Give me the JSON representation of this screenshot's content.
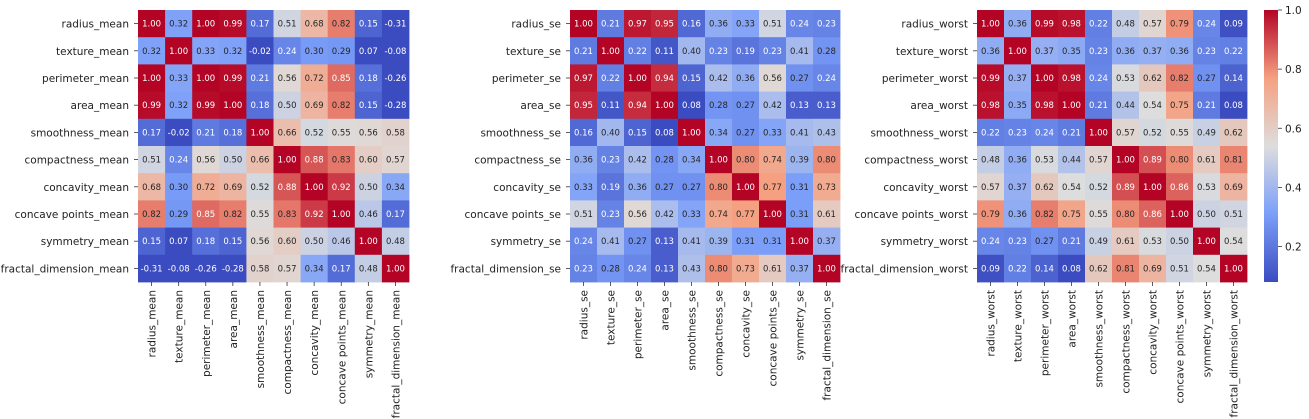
{
  "chart_data": [
    {
      "type": "heatmap",
      "labels": [
        "radius_mean",
        "texture_mean",
        "perimeter_mean",
        "area_mean",
        "smoothness_mean",
        "compactness_mean",
        "concavity_mean",
        "concave points_mean",
        "symmetry_mean",
        "fractal_dimension_mean"
      ],
      "values": [
        [
          "1.00",
          "0.32",
          "1.00",
          "0.99",
          "0.17",
          "0.51",
          "0.68",
          "0.82",
          "0.15",
          "-0.31"
        ],
        [
          "0.32",
          "1.00",
          "0.33",
          "0.32",
          "-0.02",
          "0.24",
          "0.30",
          "0.29",
          "0.07",
          "-0.08"
        ],
        [
          "1.00",
          "0.33",
          "1.00",
          "0.99",
          "0.21",
          "0.56",
          "0.72",
          "0.85",
          "0.18",
          "-0.26"
        ],
        [
          "0.99",
          "0.32",
          "0.99",
          "1.00",
          "0.18",
          "0.50",
          "0.69",
          "0.82",
          "0.15",
          "-0.28"
        ],
        [
          "0.17",
          "-0.02",
          "0.21",
          "0.18",
          "1.00",
          "0.66",
          "0.52",
          "0.55",
          "0.56",
          "0.58"
        ],
        [
          "0.51",
          "0.24",
          "0.56",
          "0.50",
          "0.66",
          "1.00",
          "0.88",
          "0.83",
          "0.60",
          "0.57"
        ],
        [
          "0.68",
          "0.30",
          "0.72",
          "0.69",
          "0.52",
          "0.88",
          "1.00",
          "0.92",
          "0.50",
          "0.34"
        ],
        [
          "0.82",
          "0.29",
          "0.85",
          "0.82",
          "0.55",
          "0.83",
          "0.92",
          "1.00",
          "0.46",
          "0.17"
        ],
        [
          "0.15",
          "0.07",
          "0.18",
          "0.15",
          "0.56",
          "0.60",
          "0.50",
          "0.46",
          "1.00",
          "0.48"
        ],
        [
          "-0.31",
          "-0.08",
          "-0.26",
          "-0.28",
          "0.58",
          "0.57",
          "0.34",
          "0.17",
          "0.48",
          "1.00"
        ]
      ]
    },
    {
      "type": "heatmap",
      "labels": [
        "radius_se",
        "texture_se",
        "perimeter_se",
        "area_se",
        "smoothness_se",
        "compactness_se",
        "concavity_se",
        "concave points_se",
        "symmetry_se",
        "fractal_dimension_se"
      ],
      "values": [
        [
          "1.00",
          "0.21",
          "0.97",
          "0.95",
          "0.16",
          "0.36",
          "0.33",
          "0.51",
          "0.24",
          "0.23"
        ],
        [
          "0.21",
          "1.00",
          "0.22",
          "0.11",
          "0.40",
          "0.23",
          "0.19",
          "0.23",
          "0.41",
          "0.28"
        ],
        [
          "0.97",
          "0.22",
          "1.00",
          "0.94",
          "0.15",
          "0.42",
          "0.36",
          "0.56",
          "0.27",
          "0.24"
        ],
        [
          "0.95",
          "0.11",
          "0.94",
          "1.00",
          "0.08",
          "0.28",
          "0.27",
          "0.42",
          "0.13",
          "0.13"
        ],
        [
          "0.16",
          "0.40",
          "0.15",
          "0.08",
          "1.00",
          "0.34",
          "0.27",
          "0.33",
          "0.41",
          "0.43"
        ],
        [
          "0.36",
          "0.23",
          "0.42",
          "0.28",
          "0.34",
          "1.00",
          "0.80",
          "0.74",
          "0.39",
          "0.80"
        ],
        [
          "0.33",
          "0.19",
          "0.36",
          "0.27",
          "0.27",
          "0.80",
          "1.00",
          "0.77",
          "0.31",
          "0.73"
        ],
        [
          "0.51",
          "0.23",
          "0.56",
          "0.42",
          "0.33",
          "0.74",
          "0.77",
          "1.00",
          "0.31",
          "0.61"
        ],
        [
          "0.24",
          "0.41",
          "0.27",
          "0.13",
          "0.41",
          "0.39",
          "0.31",
          "0.31",
          "1.00",
          "0.37"
        ],
        [
          "0.23",
          "0.28",
          "0.24",
          "0.13",
          "0.43",
          "0.80",
          "0.73",
          "0.61",
          "0.37",
          "1.00"
        ]
      ]
    },
    {
      "type": "heatmap",
      "labels": [
        "radius_worst",
        "texture_worst",
        "perimeter_worst",
        "area_worst",
        "smoothness_worst",
        "compactness_worst",
        "concavity_worst",
        "concave points_worst",
        "symmetry_worst",
        "fractal_dimension_worst"
      ],
      "values": [
        [
          "1.00",
          "0.36",
          "0.99",
          "0.98",
          "0.22",
          "0.48",
          "0.57",
          "0.79",
          "0.24",
          "0.09"
        ],
        [
          "0.36",
          "1.00",
          "0.37",
          "0.35",
          "0.23",
          "0.36",
          "0.37",
          "0.36",
          "0.23",
          "0.22"
        ],
        [
          "0.99",
          "0.37",
          "1.00",
          "0.98",
          "0.24",
          "0.53",
          "0.62",
          "0.82",
          "0.27",
          "0.14"
        ],
        [
          "0.98",
          "0.35",
          "0.98",
          "1.00",
          "0.21",
          "0.44",
          "0.54",
          "0.75",
          "0.21",
          "0.08"
        ],
        [
          "0.22",
          "0.23",
          "0.24",
          "0.21",
          "1.00",
          "0.57",
          "0.52",
          "0.55",
          "0.49",
          "0.62"
        ],
        [
          "0.48",
          "0.36",
          "0.53",
          "0.44",
          "0.57",
          "1.00",
          "0.89",
          "0.80",
          "0.61",
          "0.81"
        ],
        [
          "0.57",
          "0.37",
          "0.62",
          "0.54",
          "0.52",
          "0.89",
          "1.00",
          "0.86",
          "0.53",
          "0.69"
        ],
        [
          "0.79",
          "0.36",
          "0.82",
          "0.75",
          "0.55",
          "0.80",
          "0.86",
          "1.00",
          "0.50",
          "0.51"
        ],
        [
          "0.24",
          "0.23",
          "0.27",
          "0.21",
          "0.49",
          "0.61",
          "0.53",
          "0.50",
          "1.00",
          "0.54"
        ],
        [
          "0.09",
          "0.22",
          "0.14",
          "0.08",
          "0.62",
          "0.81",
          "0.69",
          "0.51",
          "0.54",
          "1.00"
        ]
      ]
    }
  ],
  "colorbar": {
    "colormap": "coolwarm",
    "range": [
      0.08,
      1.0
    ],
    "ticks": [
      "0.2",
      "0.4",
      "0.6",
      "0.8",
      "1.0"
    ]
  }
}
